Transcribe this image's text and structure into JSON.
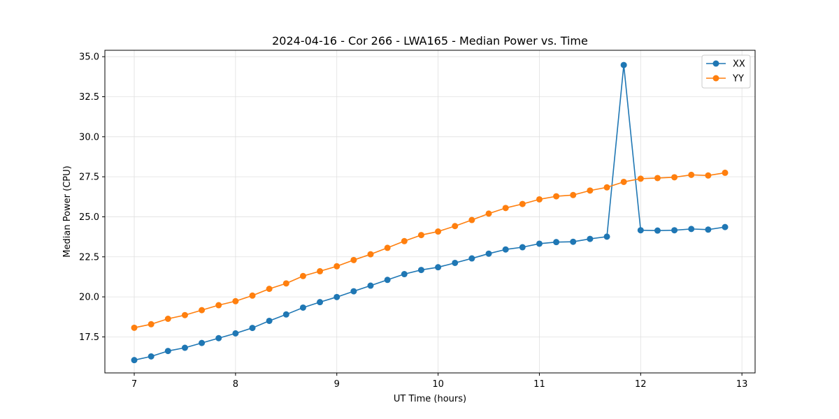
{
  "chart_data": {
    "type": "line",
    "title": "2024-04-16 - Cor 266 - LWA165 - Median Power vs. Time",
    "xlabel": "UT Time (hours)",
    "ylabel": "Median Power (CPU)",
    "xlim": [
      6.71,
      13.13
    ],
    "ylim": [
      15.25,
      35.4
    ],
    "xticks": [
      7,
      8,
      9,
      10,
      11,
      12,
      13
    ],
    "xtick_labels": [
      "7",
      "8",
      "9",
      "10",
      "11",
      "12",
      "13"
    ],
    "yticks": [
      17.5,
      20.0,
      22.5,
      25.0,
      27.5,
      30.0,
      32.5,
      35.0
    ],
    "ytick_labels": [
      "17.5",
      "20.0",
      "22.5",
      "25.0",
      "27.5",
      "30.0",
      "32.5",
      "35.0"
    ],
    "grid": true,
    "legend_position": "top-right",
    "x": [
      7.0,
      7.1667,
      7.3333,
      7.5,
      7.6667,
      7.8333,
      8.0,
      8.1667,
      8.3333,
      8.5,
      8.6667,
      8.8333,
      9.0,
      9.1667,
      9.3333,
      9.5,
      9.6667,
      9.8333,
      10.0,
      10.1667,
      10.3333,
      10.5,
      10.6667,
      10.8333,
      11.0,
      11.1667,
      11.3333,
      11.5,
      11.6667,
      11.8333,
      12.0,
      12.1667,
      12.3333,
      12.5,
      12.6667,
      12.8333
    ],
    "series": [
      {
        "name": "XX",
        "color": "#1f77b4",
        "values": [
          16.05,
          16.28,
          16.62,
          16.82,
          17.12,
          17.42,
          17.72,
          18.06,
          18.5,
          18.9,
          19.33,
          19.67,
          19.99,
          20.35,
          20.7,
          21.06,
          21.42,
          21.68,
          21.85,
          22.12,
          22.4,
          22.7,
          22.96,
          23.1,
          23.32,
          23.42,
          23.44,
          23.62,
          23.76,
          34.48,
          24.16,
          24.14,
          24.16,
          24.24,
          24.2,
          24.36
        ]
      },
      {
        "name": "YY",
        "color": "#ff7f0e",
        "values": [
          18.07,
          18.29,
          18.63,
          18.86,
          19.17,
          19.48,
          19.73,
          20.08,
          20.5,
          20.84,
          21.3,
          21.6,
          21.91,
          22.3,
          22.66,
          23.06,
          23.48,
          23.86,
          24.08,
          24.42,
          24.8,
          25.2,
          25.55,
          25.8,
          26.09,
          26.28,
          26.36,
          26.64,
          26.84,
          27.18,
          27.38,
          27.42,
          27.47,
          27.62,
          27.58,
          27.75
        ]
      }
    ]
  }
}
